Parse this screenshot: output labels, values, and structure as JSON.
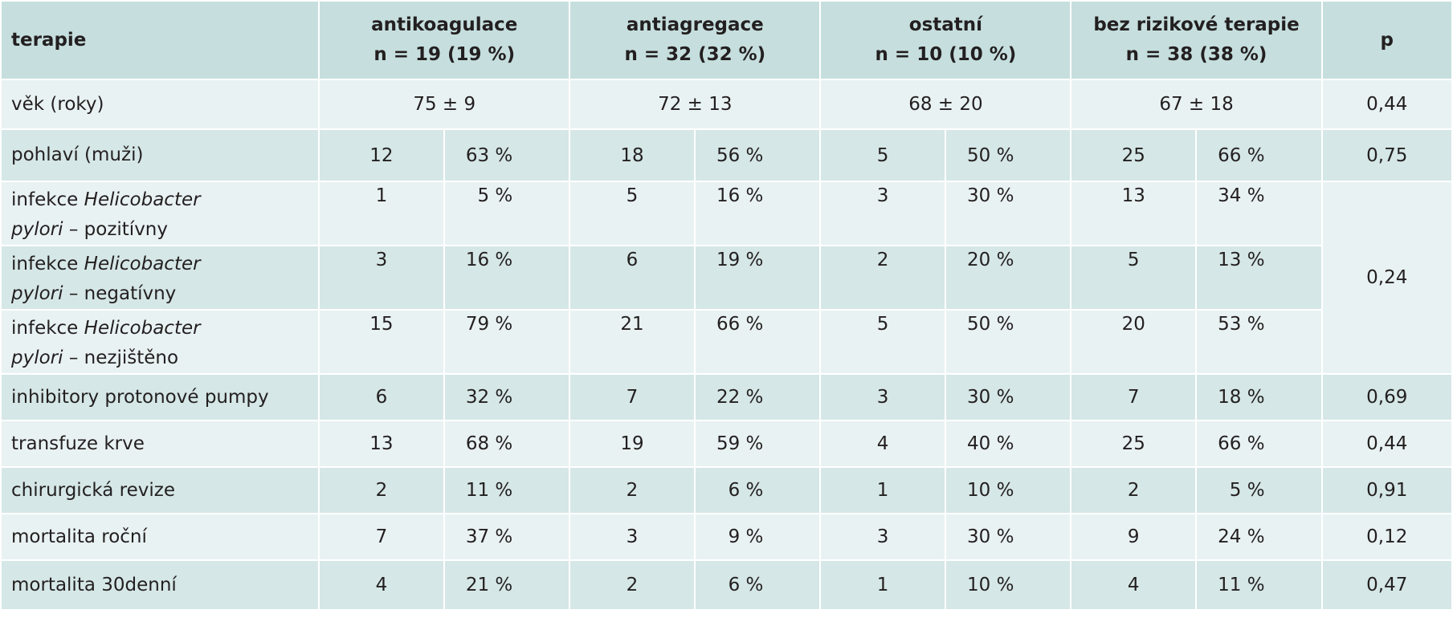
{
  "table": {
    "headers": {
      "terapie": "terapie",
      "groups": [
        {
          "name": "antikoagulace",
          "n": "n = 19 (19 %)"
        },
        {
          "name": "antiagregace",
          "n": "n = 32 (32 %)"
        },
        {
          "name": "ostatní",
          "n": "n = 10 (10 %)"
        },
        {
          "name": "bez rizikové terapie",
          "n": "n = 38 (38 %)"
        }
      ],
      "p": "p"
    },
    "age": {
      "label": "věk (roky)",
      "values": [
        "75 ± 9",
        "72 ± 13",
        "68 ± 20",
        "67 ± 18"
      ],
      "p": "0,44"
    },
    "sex": {
      "label": "pohlaví (muži)",
      "values": [
        "12",
        "63 %",
        "18",
        "56 %",
        "5",
        "50 %",
        "25",
        "66 %"
      ],
      "p": "0,75"
    },
    "hp_label": {
      "prefix": "infekce ",
      "genus": "Helicobacter",
      "species": "pylori"
    },
    "hp_rows": [
      {
        "suffix": " – pozitívny",
        "values": [
          "1",
          "5 %",
          "5",
          "16 %",
          "3",
          "30 %",
          "13",
          "34 %"
        ]
      },
      {
        "suffix": " – negatívny",
        "values": [
          "3",
          "16 %",
          "6",
          "19 %",
          "2",
          "20 %",
          "5",
          "13 %"
        ]
      },
      {
        "suffix": " – nezjištěno",
        "values": [
          "15",
          "79 %",
          "21",
          "66 %",
          "5",
          "50 %",
          "20",
          "53 %"
        ]
      }
    ],
    "hp_p": "0,24",
    "rows": [
      {
        "label": "inhibitory protonové pumpy",
        "values": [
          "6",
          "32 %",
          "7",
          "22 %",
          "3",
          "30 %",
          "7",
          "18 %"
        ],
        "p": "0,69"
      },
      {
        "label": "transfuze krve",
        "values": [
          "13",
          "68 %",
          "19",
          "59 %",
          "4",
          "40 %",
          "25",
          "66 %"
        ],
        "p": "0,44"
      },
      {
        "label": "chirurgická revize",
        "values": [
          "2",
          "11 %",
          "2",
          "6 %",
          "1",
          "10 %",
          "2",
          "5 %"
        ],
        "p": "0,91"
      },
      {
        "label": "mortalita roční",
        "values": [
          "7",
          "37 %",
          "3",
          "9 %",
          "3",
          "30 %",
          "9",
          "24 %"
        ],
        "p": "0,12"
      },
      {
        "label": "mortalita 30denní",
        "values": [
          "4",
          "21 %",
          "2",
          "6 %",
          "1",
          "10 %",
          "4",
          "11 %"
        ],
        "p": "0,47"
      }
    ]
  }
}
